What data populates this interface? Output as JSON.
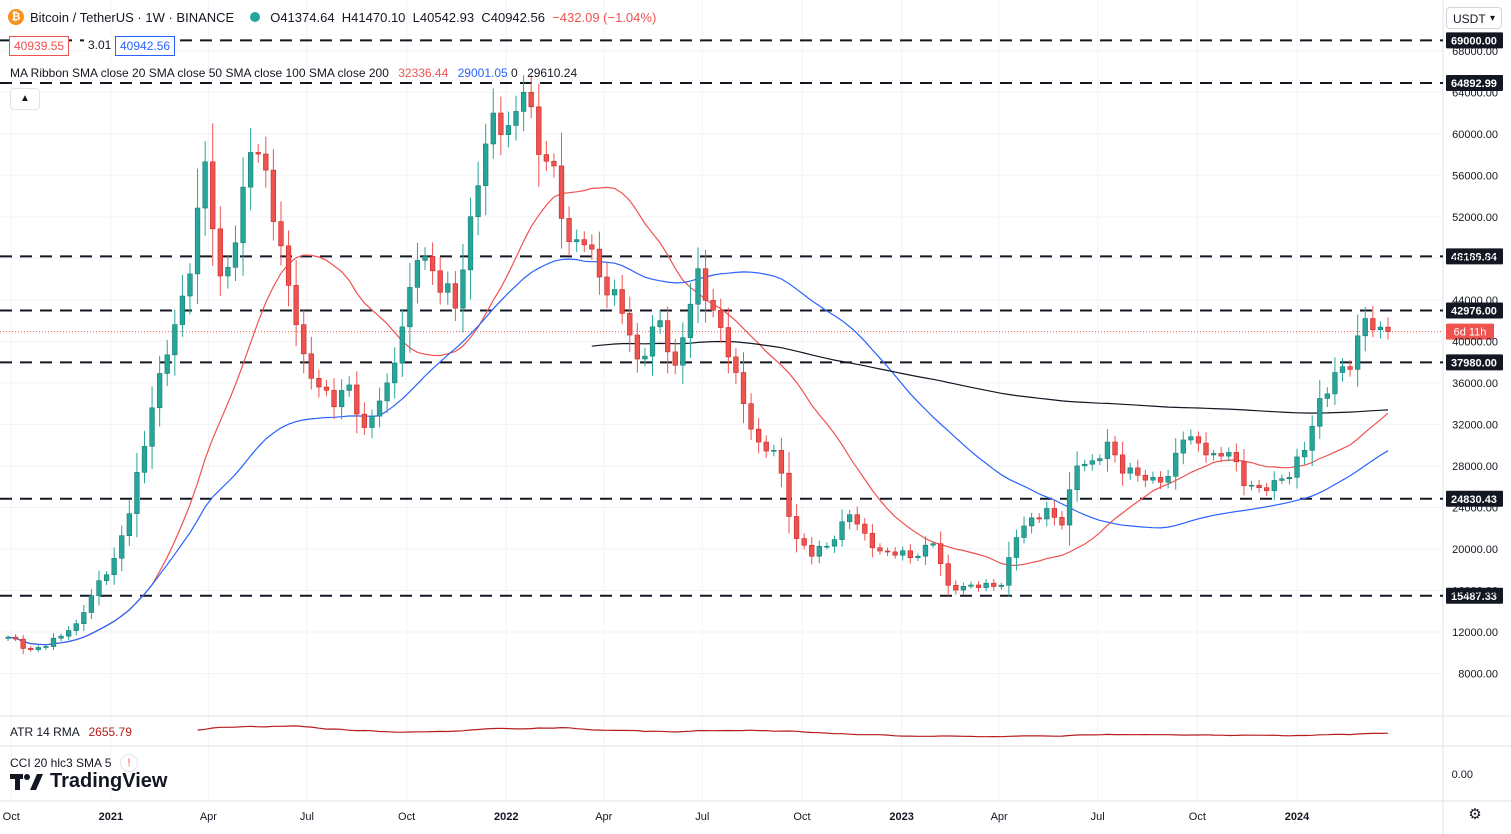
{
  "header": {
    "symbol": "Bitcoin / TetherUS · 1W · BINANCE",
    "coin_glyph": "₿",
    "open": "O41374.64",
    "high": "H41470.10",
    "low": "L40542.93",
    "close": "C40942.56",
    "change": "−432.09 (−1.04%)"
  },
  "quote": {
    "bid": "40939.55",
    "spread": "3.01",
    "ask": "40942.56"
  },
  "indicators": {
    "ma_ribbon": {
      "label": "MA Ribbon SMA close 20 SMA close 50 SMA close 100 SMA close 200",
      "v20": "32336.44",
      "v50": "29001.05",
      "v100": "0",
      "v200": "29610.24"
    },
    "atr": {
      "label": "ATR 14 RMA",
      "value": "2655.79"
    },
    "cci": {
      "label": "CCI 20 hlc3 SMA 5",
      "close_glyph": "!"
    }
  },
  "currency": "USDT",
  "logo_text": "TradingView",
  "countdown": "6d 11h",
  "colors": {
    "up": "#26a69a",
    "down": "#ef5350",
    "sma20": "#ef5350",
    "sma50": "#2962ff",
    "sma200": "#131722",
    "atr": "#b71c1c",
    "level_label_bg": "#131722"
  },
  "chart_data": {
    "type": "candlestick",
    "y_range": [
      4000,
      70000
    ],
    "y_ticks": [
      8000,
      12000,
      16000,
      20000,
      24000,
      28000,
      32000,
      36000,
      40000,
      44000,
      48000,
      52000,
      56000,
      60000,
      64000,
      68000
    ],
    "y_tick_labels": [
      "8000.00",
      "12000.00",
      "16000.00",
      "20000.00",
      "24000.00",
      "28000.00",
      "32000.00",
      "36000.00",
      "40000.00",
      "44000.00",
      "48000.00",
      "52000.00",
      "56000.00",
      "60000.00",
      "64000.00",
      "68000.00"
    ],
    "x_axis_labels": [
      {
        "label": "Oct",
        "date": "2020-10"
      },
      {
        "label": "2021",
        "date": "2021-01"
      },
      {
        "label": "Apr",
        "date": "2021-04"
      },
      {
        "label": "Jul",
        "date": "2021-07"
      },
      {
        "label": "Oct",
        "date": "2021-10"
      },
      {
        "label": "2022",
        "date": "2022-01"
      },
      {
        "label": "Apr",
        "date": "2022-04"
      },
      {
        "label": "Jul",
        "date": "2022-07"
      },
      {
        "label": "Oct",
        "date": "2022-10"
      },
      {
        "label": "2023",
        "date": "2023-01"
      },
      {
        "label": "Apr",
        "date": "2023-04"
      },
      {
        "label": "Jul",
        "date": "2023-07"
      },
      {
        "label": "Oct",
        "date": "2023-10"
      },
      {
        "label": "2024",
        "date": "2024-01"
      }
    ],
    "levels": [
      {
        "value": 69000,
        "label": "69000.00"
      },
      {
        "value": 64892.99,
        "label": "64892.99"
      },
      {
        "value": 48189.84,
        "label": "48189.84"
      },
      {
        "value": 42976.0,
        "label": "42976.00"
      },
      {
        "value": 37980.0,
        "label": "37980.00"
      },
      {
        "value": 24830.43,
        "label": "24830.43"
      },
      {
        "value": 15487.33,
        "label": "15487.33"
      }
    ],
    "last_price": 40942.56,
    "cci_axis_label": "0.00",
    "key_closes": [
      [
        0,
        11500
      ],
      [
        3,
        10300
      ],
      [
        5,
        10600
      ],
      [
        9,
        12800
      ],
      [
        11,
        15500
      ],
      [
        14,
        19100
      ],
      [
        16,
        23400
      ],
      [
        19,
        33600
      ],
      [
        21,
        38700
      ],
      [
        24,
        46500
      ],
      [
        26,
        57300
      ],
      [
        28,
        46300
      ],
      [
        30,
        49500
      ],
      [
        32,
        58200
      ],
      [
        34,
        56500
      ],
      [
        36,
        49200
      ],
      [
        39,
        38800
      ],
      [
        41,
        35600
      ],
      [
        43,
        33700
      ],
      [
        45,
        35800
      ],
      [
        47,
        31700
      ],
      [
        50,
        36000
      ],
      [
        52,
        41400
      ],
      [
        54,
        47800
      ],
      [
        56,
        46800
      ],
      [
        59,
        43200
      ],
      [
        62,
        55000
      ],
      [
        64,
        62000
      ],
      [
        66,
        60800
      ],
      [
        68,
        64000
      ],
      [
        70,
        58000
      ],
      [
        72,
        56900
      ],
      [
        74,
        49600
      ],
      [
        76,
        49300
      ],
      [
        78,
        46200
      ],
      [
        81,
        42700
      ],
      [
        83,
        38300
      ],
      [
        86,
        42000
      ],
      [
        88,
        37700
      ],
      [
        91,
        47000
      ],
      [
        93,
        43000
      ],
      [
        95,
        38500
      ],
      [
        97,
        34000
      ],
      [
        99,
        30300
      ],
      [
        101,
        29500
      ],
      [
        104,
        21000
      ],
      [
        106,
        19300
      ],
      [
        109,
        20900
      ],
      [
        111,
        23300
      ],
      [
        113,
        21500
      ],
      [
        115,
        19800
      ],
      [
        117,
        19400
      ],
      [
        120,
        19300
      ],
      [
        122,
        20500
      ],
      [
        124,
        16500
      ],
      [
        126,
        16400
      ],
      [
        129,
        16700
      ],
      [
        131,
        16500
      ],
      [
        133,
        21100
      ],
      [
        135,
        23000
      ],
      [
        137,
        23900
      ],
      [
        139,
        22300
      ],
      [
        141,
        28000
      ],
      [
        143,
        28500
      ],
      [
        145,
        30300
      ],
      [
        147,
        27300
      ],
      [
        149,
        27100
      ],
      [
        151,
        26900
      ],
      [
        153,
        27000
      ],
      [
        155,
        30500
      ],
      [
        157,
        30200
      ],
      [
        159,
        29200
      ],
      [
        161,
        29300
      ],
      [
        163,
        26100
      ],
      [
        165,
        25900
      ],
      [
        167,
        26600
      ],
      [
        169,
        26900
      ],
      [
        171,
        29500
      ],
      [
        173,
        34500
      ],
      [
        175,
        37000
      ],
      [
        177,
        37300
      ],
      [
        179,
        42200
      ],
      [
        181,
        41374.64
      ],
      [
        182,
        40942.56
      ]
    ]
  }
}
